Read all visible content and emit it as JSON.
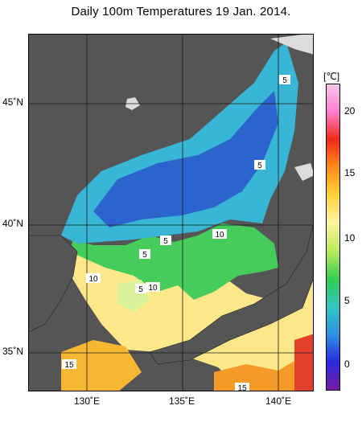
{
  "title": "Daily 100m Temperatures 19 Jan. 2014.",
  "colorbar": {
    "unit": "[℃]",
    "ticks": [
      "20",
      "15",
      "10",
      "5",
      "0"
    ],
    "colors": [
      "#7a1aa0",
      "#2a2adf",
      "#2f8fe0",
      "#33c4c4",
      "#33cc55",
      "#b6e85a",
      "#fff3a0",
      "#ffd23a",
      "#ff8a1a",
      "#f02a1a",
      "#ff7fd0",
      "#f7c7ea"
    ]
  },
  "axes": {
    "lon_labels": [
      "130˚E",
      "135˚E",
      "140˚E"
    ],
    "lat_labels": [
      "45˚N",
      "40˚N",
      "35˚N"
    ]
  },
  "contour_labels": [
    "5",
    "5",
    "5",
    "10",
    "5",
    "10",
    "5",
    "10",
    "15",
    "15"
  ],
  "map": {
    "land_color": "#555555",
    "ice_color": "#dcdcdc"
  }
}
